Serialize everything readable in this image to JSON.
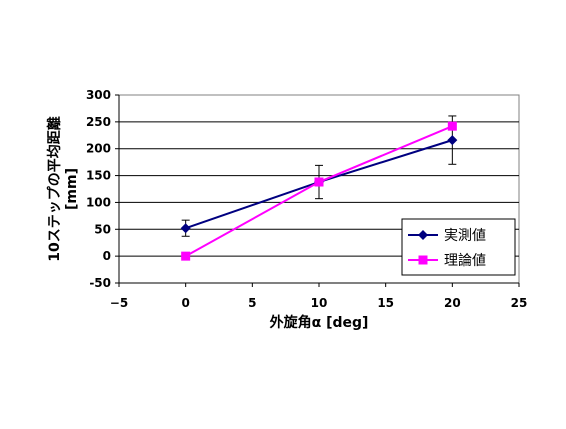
{
  "chart_data": {
    "type": "line",
    "xlabel": "外旋角α [deg]",
    "ylabel": "10ステップの平均距離",
    "ylabel_unit": "[mm]",
    "xlim": [
      -5,
      25
    ],
    "ylim": [
      -50,
      300
    ],
    "xticks": [
      -5,
      0,
      5,
      10,
      15,
      20,
      25
    ],
    "yticks": [
      -50,
      0,
      50,
      100,
      150,
      200,
      250,
      300
    ],
    "grid": "horizontal",
    "legend_position": "bottom-right",
    "series": [
      {
        "name": "実測値",
        "color": "#000080",
        "marker": "diamond",
        "x": [
          0,
          10,
          20
        ],
        "y": [
          52,
          138,
          216
        ],
        "error": [
          15,
          31,
          45
        ]
      },
      {
        "name": "理論値",
        "color": "#ff00ff",
        "marker": "square",
        "x": [
          0,
          10,
          20
        ],
        "y": [
          0,
          138,
          242
        ],
        "error": null
      }
    ]
  }
}
